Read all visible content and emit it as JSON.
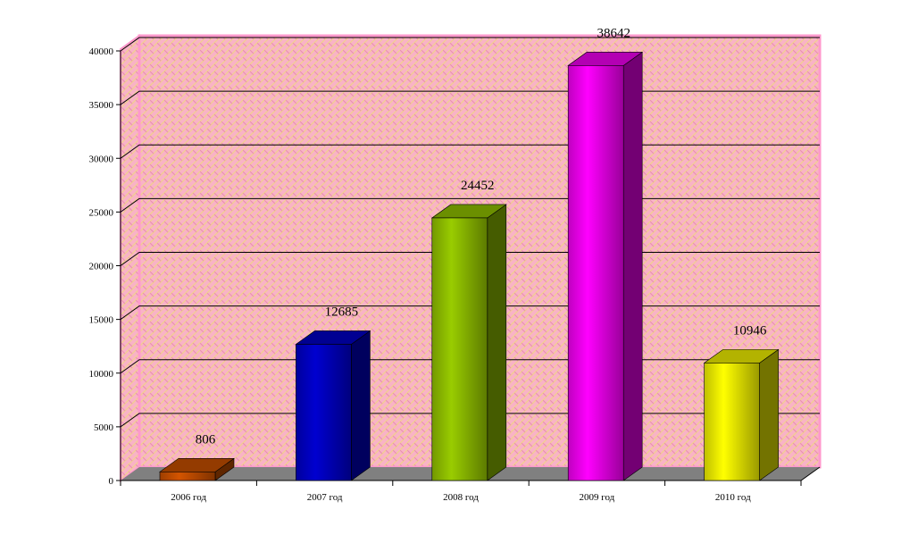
{
  "chart_data": {
    "type": "bar3d",
    "categories": [
      "2006 год",
      "2007 год",
      "2008 год",
      "2009 год",
      "2010 год"
    ],
    "values": [
      806,
      12685,
      24452,
      38642,
      10946
    ],
    "colors": [
      "#d35400",
      "#0000d0",
      "#99cc00",
      "#ff00ff",
      "#ffff00"
    ],
    "ylim": [
      0,
      40000
    ],
    "yticks": [
      0,
      5000,
      10000,
      15000,
      20000,
      25000,
      30000,
      35000,
      40000
    ],
    "grid": true
  }
}
